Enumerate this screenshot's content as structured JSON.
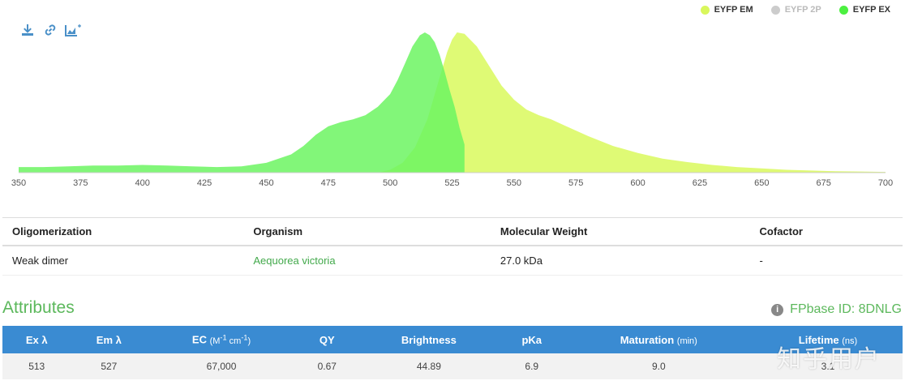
{
  "toolbar": {
    "download_icon": "download-icon",
    "link_icon": "link-icon",
    "add_chart_icon": "add-chart-icon"
  },
  "legend": [
    {
      "label": "EYFP EM",
      "color": "#d9f75c",
      "active": true
    },
    {
      "label": "EYFP 2P",
      "color": "#cccccc",
      "active": false
    },
    {
      "label": "EYFP EX",
      "color": "#4cf040",
      "active": true
    }
  ],
  "chart_data": {
    "type": "area",
    "x_ticks": [
      350,
      375,
      400,
      425,
      450,
      475,
      500,
      525,
      550,
      575,
      600,
      625,
      650,
      675,
      700
    ],
    "xlim": [
      350,
      700
    ],
    "ylim": [
      0,
      1
    ],
    "grid": false,
    "legend_position": "top-right",
    "series": [
      {
        "name": "EYFP EX",
        "color": "#6cf562",
        "x": [
          350,
          360,
          370,
          380,
          390,
          400,
          410,
          420,
          430,
          440,
          450,
          460,
          465,
          470,
          475,
          480,
          485,
          490,
          495,
          500,
          503,
          506,
          509,
          512,
          514,
          516,
          518,
          520,
          522,
          524,
          526,
          528,
          530
        ],
        "y": [
          0.04,
          0.04,
          0.045,
          0.05,
          0.05,
          0.055,
          0.05,
          0.045,
          0.04,
          0.045,
          0.07,
          0.13,
          0.19,
          0.27,
          0.33,
          0.36,
          0.38,
          0.41,
          0.47,
          0.56,
          0.66,
          0.78,
          0.9,
          0.98,
          1.0,
          0.98,
          0.93,
          0.84,
          0.72,
          0.59,
          0.47,
          0.32,
          0.2
        ]
      },
      {
        "name": "EYFP EM",
        "color": "#dbfa66",
        "x": [
          495,
          500,
          505,
          510,
          515,
          520,
          523,
          525,
          527,
          530,
          535,
          540,
          545,
          550,
          555,
          560,
          565,
          570,
          575,
          580,
          590,
          600,
          610,
          620,
          630,
          640,
          650,
          660,
          670,
          680,
          690,
          700
        ],
        "y": [
          0.0,
          0.02,
          0.07,
          0.18,
          0.38,
          0.68,
          0.86,
          0.95,
          1.0,
          0.99,
          0.9,
          0.76,
          0.62,
          0.52,
          0.45,
          0.41,
          0.38,
          0.34,
          0.3,
          0.26,
          0.19,
          0.14,
          0.1,
          0.075,
          0.055,
          0.04,
          0.03,
          0.02,
          0.015,
          0.01,
          0.008,
          0.005
        ]
      }
    ]
  },
  "properties": {
    "headers": [
      "Oligomerization",
      "Organism",
      "Molecular Weight",
      "Cofactor"
    ],
    "values": [
      "Weak dimer",
      "Aequorea victoria",
      "27.0 kDa",
      "-"
    ]
  },
  "attributes": {
    "title": "Attributes",
    "fpbase_label": "FPbase ID: 8DNLG",
    "headers": {
      "ex": "Ex λ",
      "em": "Em λ",
      "ec": "EC",
      "ec_unit_m": "(M",
      "ec_unit_m_exp": "-1",
      "ec_unit_cm": " cm",
      "ec_unit_cm_exp": "-1",
      "ec_unit_close": ")",
      "qy": "QY",
      "brightness": "Brightness",
      "pka": "pKa",
      "maturation": "Maturation",
      "maturation_unit": "(min)",
      "lifetime": "Lifetime",
      "lifetime_unit": "(ns)"
    },
    "values": {
      "ex": "513",
      "em": "527",
      "ec": "67,000",
      "qy": "0.67",
      "brightness": "44.89",
      "pka": "6.9",
      "maturation": "9.0",
      "lifetime": "3.1"
    }
  },
  "watermark": "知乎用户"
}
